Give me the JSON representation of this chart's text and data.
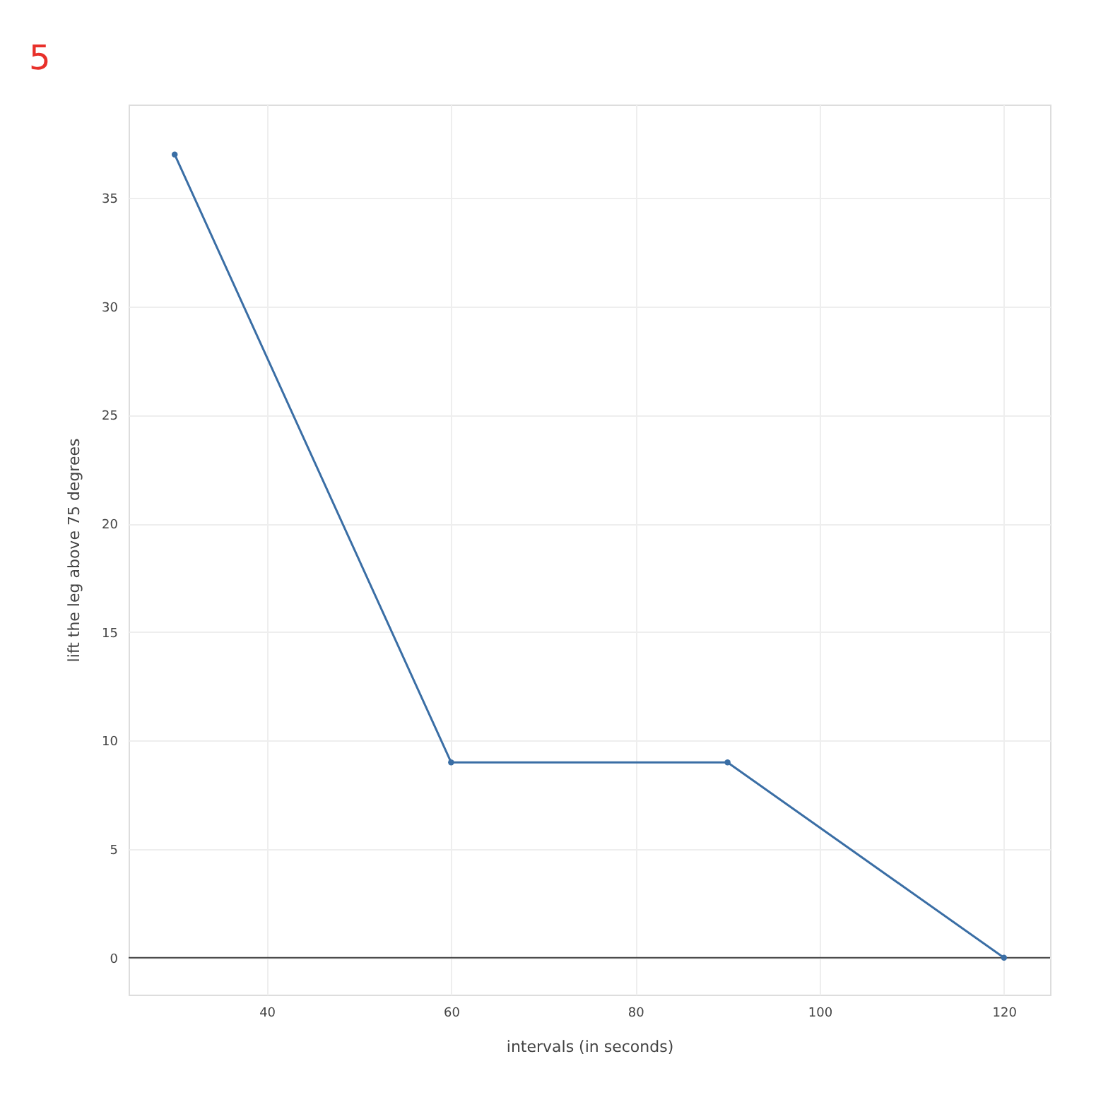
{
  "chart_data": {
    "type": "line",
    "title": "5",
    "xlabel": "intervals (in seconds)",
    "ylabel": "lift the leg above 75 degrees",
    "x": [
      30,
      60,
      90,
      120
    ],
    "series": [
      {
        "color": "#3a6ea5",
        "values": [
          37,
          9,
          9,
          0
        ]
      }
    ],
    "xlim": [
      25,
      125
    ],
    "xticks": [
      40,
      60,
      80,
      100,
      120
    ],
    "ylim": [
      -1.7,
      39.3
    ],
    "yticks": [
      0,
      5,
      10,
      15,
      20,
      25,
      30,
      35
    ],
    "ref_lines": [
      {
        "axis": "y",
        "value": 0,
        "color": "#444444"
      }
    ],
    "grid": true,
    "marker": "circle",
    "line_style": "solid"
  }
}
